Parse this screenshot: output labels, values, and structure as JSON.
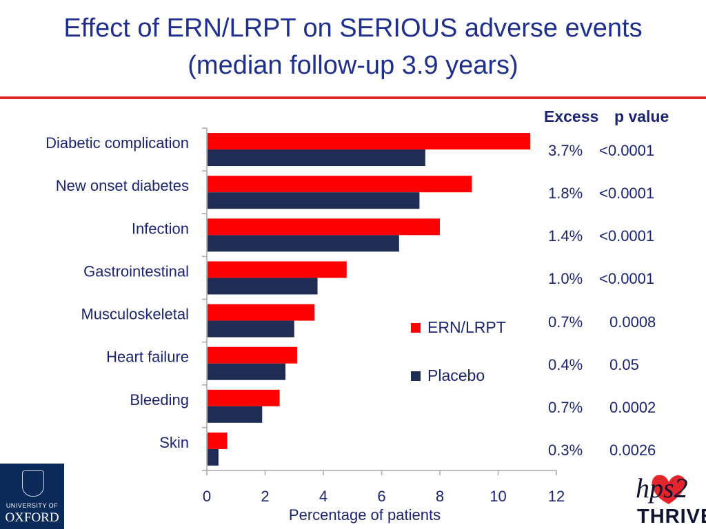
{
  "title": {
    "line1": "Effect of ERN/LRPT on SERIOUS adverse events",
    "line2": "(median follow-up 3.9 years)"
  },
  "colors": {
    "title": "#1e2f8f",
    "rule": "#e3262b",
    "ern": "#ff0000",
    "placebo": "#1f2d55",
    "text": "#1a2473"
  },
  "chart_data": {
    "type": "bar",
    "orientation": "horizontal",
    "categories": [
      "Diabetic complication",
      "New onset diabetes",
      "Infection",
      "Gastrointestinal",
      "Musculoskeletal",
      "Heart failure",
      "Bleeding",
      "Skin"
    ],
    "series": [
      {
        "name": "ERN/LRPT",
        "color": "#ff0000",
        "values": [
          11.1,
          9.1,
          8.0,
          4.8,
          3.7,
          3.1,
          2.5,
          0.7
        ]
      },
      {
        "name": "Placebo",
        "color": "#1f2d55",
        "values": [
          7.5,
          7.3,
          6.6,
          3.8,
          3.0,
          2.7,
          1.9,
          0.4
        ]
      }
    ],
    "xlabel": "Percentage of patients",
    "xlim": [
      0,
      12
    ],
    "xticks": [
      "0",
      "2",
      "4",
      "6",
      "8",
      "10",
      "12"
    ],
    "legend_position": "center-right",
    "grid": false
  },
  "table": {
    "headers": {
      "excess": "Excess",
      "pvalue": "p value"
    },
    "rows": [
      {
        "excess": "3.7%",
        "pvalue": "<0.0001"
      },
      {
        "excess": "1.8%",
        "pvalue": "<0.0001"
      },
      {
        "excess": "1.4%",
        "pvalue": "<0.0001"
      },
      {
        "excess": "1.0%",
        "pvalue": "<0.0001"
      },
      {
        "excess": "0.7%",
        "pvalue": "0.0008"
      },
      {
        "excess": "0.4%",
        "pvalue": "0.05"
      },
      {
        "excess": "0.7%",
        "pvalue": "0.0002"
      },
      {
        "excess": "0.3%",
        "pvalue": "0.0026"
      }
    ]
  },
  "logos": {
    "oxford_small": "UNIVERSITY OF",
    "oxford_big": "OXFORD",
    "thrive_mark": "hps2",
    "thrive_word": "THRIVE"
  }
}
